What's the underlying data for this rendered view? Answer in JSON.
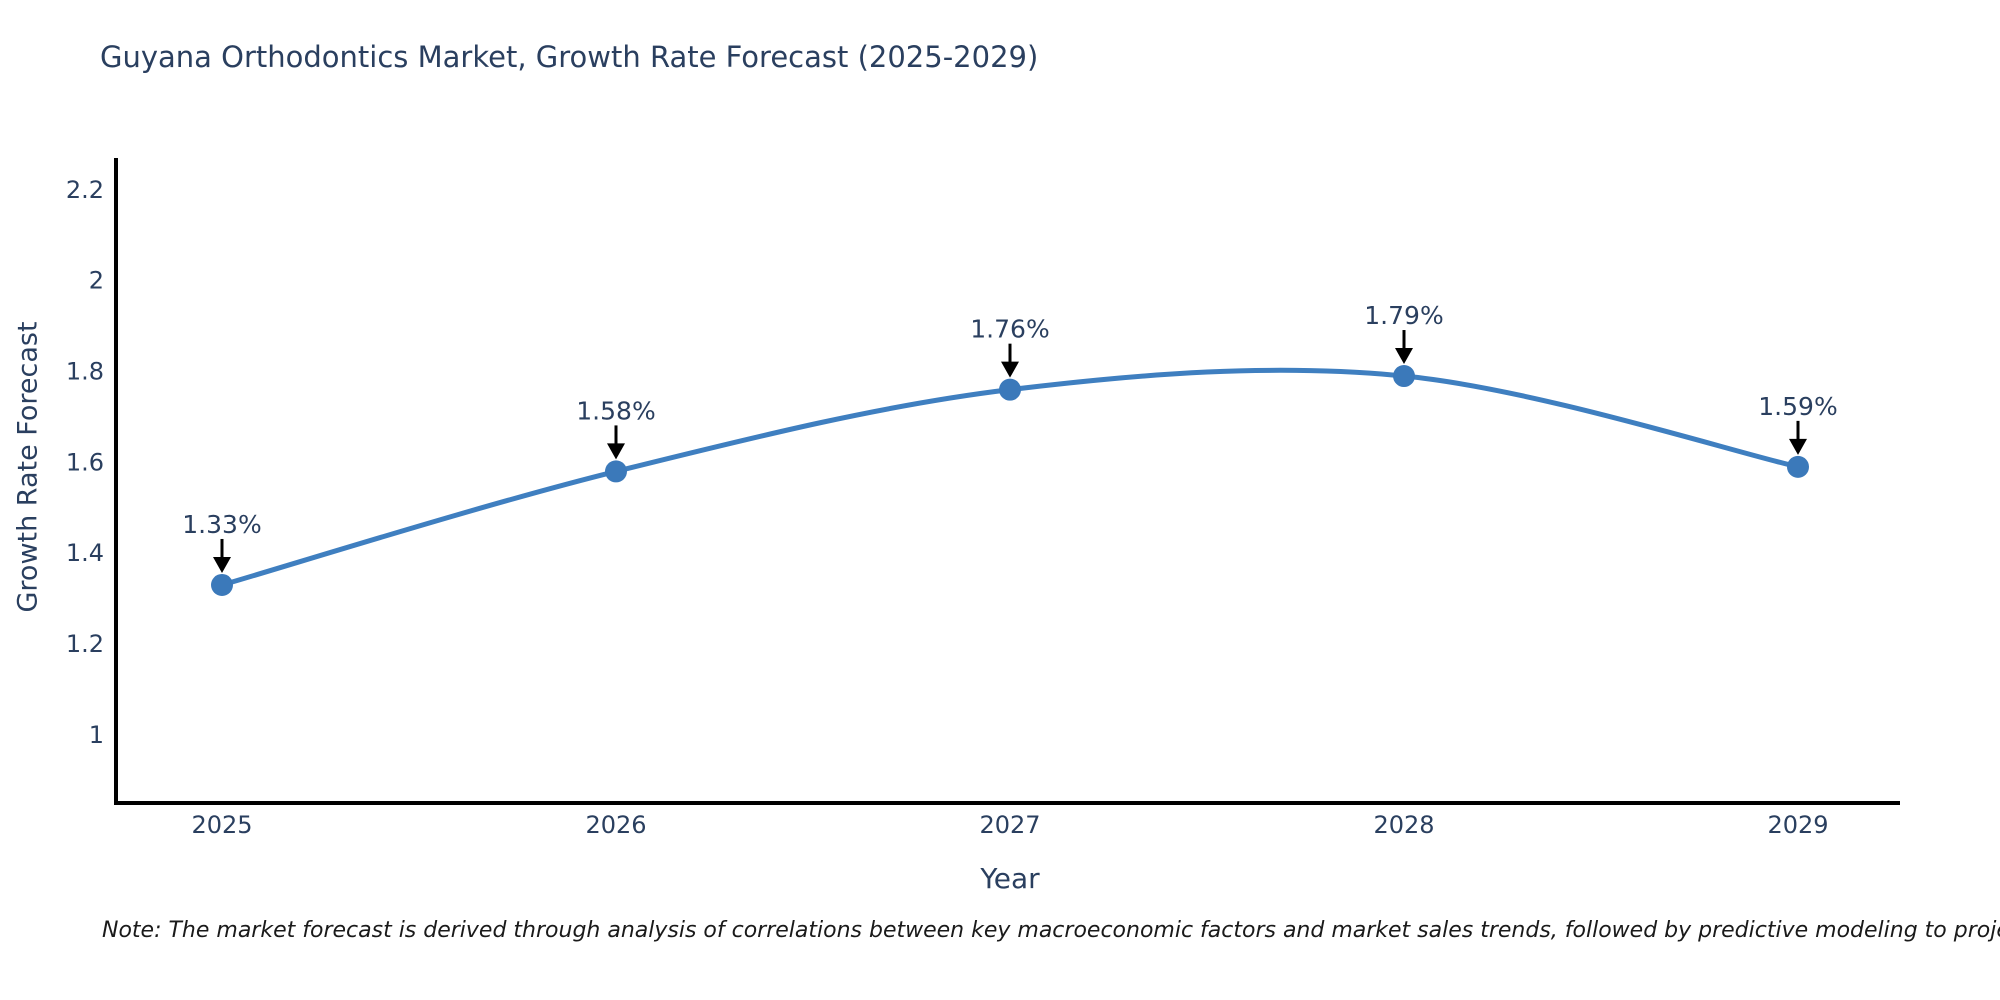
{
  "chart_data": {
    "type": "line",
    "title": "Guyana Orthodontics Market, Growth Rate Forecast (2025-2029)",
    "xlabel": "Year",
    "ylabel": "Growth Rate Forecast",
    "x": [
      2025,
      2026,
      2027,
      2028,
      2029
    ],
    "series": [
      {
        "name": "Growth Rate Forecast",
        "values": [
          1.33,
          1.58,
          1.76,
          1.79,
          1.59
        ]
      }
    ],
    "point_labels": [
      "1.33%",
      "1.58%",
      "1.76%",
      "1.79%",
      "1.59%"
    ],
    "y_ticks": [
      1,
      1.2,
      1.4,
      1.6,
      1.8,
      2,
      2.2
    ],
    "ylim": [
      0.85,
      2.27
    ],
    "grid": false,
    "legend_position": "none",
    "line_shape": "spline",
    "annotation_style": "value label with black arrow pointing down at each point"
  },
  "note": "Note: The market forecast is derived through analysis of correlations between key macroeconomic factors and market sales trends, followed by predictive modeling to project future sales",
  "colors": {
    "line": "#3f7fc0",
    "marker": "#3b79ba",
    "axis": "#000000",
    "arrow": "#000000",
    "text": "#2a3f5f",
    "tick_text": "#2a3f5f",
    "note_text": "#1a1a1a",
    "background": "#ffffff"
  }
}
